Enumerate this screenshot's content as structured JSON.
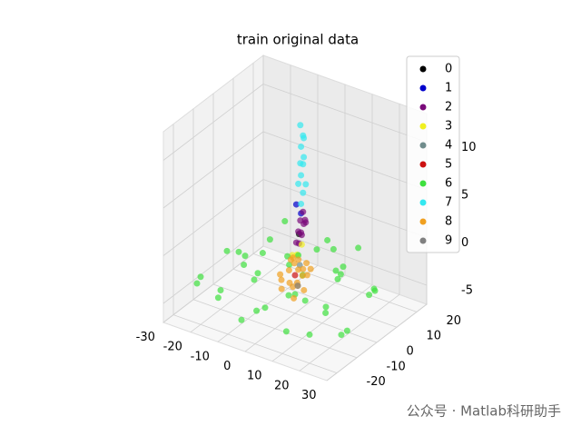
{
  "chart_data": {
    "type": "scatter3d",
    "title": "train original data",
    "xlim": [
      -30,
      30
    ],
    "ylim": [
      -25,
      25
    ],
    "zlim": [
      -7,
      13
    ],
    "xticks": [
      -30,
      -20,
      -10,
      0,
      10,
      20,
      30
    ],
    "yticks": [
      -20,
      -10,
      0,
      10,
      20
    ],
    "zticks": [
      -5,
      0,
      5,
      10
    ],
    "grid": true,
    "legend": "upper right",
    "series": [
      {
        "name": "0",
        "color": "#000000",
        "x": [
          0
        ],
        "y": [
          2
        ],
        "z": [
          1
        ]
      },
      {
        "name": "1",
        "color": "#0000cc",
        "x": [
          -1,
          0
        ],
        "y": [
          2,
          3
        ],
        "z": [
          4,
          3
        ]
      },
      {
        "name": "2",
        "color": "#7a0a7a",
        "x": [
          -1,
          0,
          1,
          0,
          -1,
          1,
          0,
          1,
          -1,
          0
        ],
        "y": [
          2,
          3,
          3,
          4,
          4,
          2,
          2,
          4,
          3,
          5
        ],
        "z": [
          0,
          1,
          2,
          3,
          2,
          1,
          0,
          2,
          1,
          2
        ]
      },
      {
        "name": "3",
        "color": "#f0f020",
        "x": [
          0,
          1,
          -1
        ],
        "y": [
          1,
          2,
          0
        ],
        "z": [
          -1,
          0,
          -1
        ]
      },
      {
        "name": "4",
        "color": "#708c8c",
        "x": [
          1
        ],
        "y": [
          1
        ],
        "z": [
          -2
        ]
      },
      {
        "name": "5",
        "color": "#cc1010",
        "x": [
          0
        ],
        "y": [
          0
        ],
        "z": [
          -3
        ]
      },
      {
        "name": "6",
        "color": "#3ee03e",
        "x": [
          -25,
          -20,
          -15,
          -10,
          -5,
          0,
          5,
          10,
          15,
          20,
          25,
          -22,
          -18,
          -12,
          -8,
          -3,
          3,
          8,
          12,
          18,
          22,
          -25,
          -15,
          -5,
          5,
          15,
          25,
          -20,
          0,
          10,
          -10,
          20,
          -28,
          28,
          6,
          -6,
          14,
          -14,
          2,
          -2
        ],
        "y": [
          -15,
          -10,
          -18,
          -5,
          -20,
          -15,
          -10,
          -18,
          -5,
          -12,
          -8,
          5,
          12,
          18,
          8,
          15,
          20,
          12,
          5,
          15,
          10,
          0,
          0,
          3,
          -3,
          0,
          3,
          -20,
          0,
          18,
          -12,
          -20,
          10,
          -15,
          8,
          -8,
          -14,
          14,
          -22,
          22
        ],
        "z": [
          -4,
          -5,
          -4,
          -3,
          -5,
          -4,
          -3,
          -5,
          -4,
          -3,
          -5,
          -4,
          -3,
          -5,
          -4,
          -3,
          -5,
          -4,
          -3,
          -5,
          -4,
          -3,
          -5,
          -2,
          -2,
          -1,
          -3,
          -2,
          -5,
          -2,
          -1,
          -4,
          -5,
          -4,
          0,
          0,
          -2,
          -1,
          -3,
          -4
        ]
      },
      {
        "name": "7",
        "color": "#33e8f0",
        "x": [
          0,
          0,
          -1,
          1,
          0,
          0,
          -1,
          1,
          0,
          0,
          1,
          -1
        ],
        "y": [
          3,
          4,
          3,
          4,
          3,
          4,
          4,
          3,
          3,
          4,
          3,
          4
        ],
        "z": [
          4,
          5,
          6,
          6,
          7,
          8,
          8,
          9,
          10,
          11,
          11,
          12
        ]
      },
      {
        "name": "8",
        "color": "#f0a020",
        "x": [
          -4,
          -2,
          0,
          2,
          4,
          -3,
          -1,
          1,
          3,
          -5,
          5,
          0,
          -2,
          2,
          -1,
          1,
          3,
          -3,
          0,
          2
        ],
        "y": [
          -2,
          0,
          -3,
          1,
          -1,
          2,
          3,
          -2,
          2,
          0,
          1,
          4,
          -4,
          -1,
          1,
          0,
          -3,
          3,
          -1,
          3
        ],
        "z": [
          -3,
          -4,
          -2,
          -3,
          -4,
          -2,
          -3,
          -5,
          -3,
          -4,
          -2,
          -3,
          -4,
          -1,
          -2,
          -4,
          -3,
          -5,
          -1,
          -2
        ]
      },
      {
        "name": "9",
        "color": "#808080",
        "x": [
          1
        ],
        "y": [
          0
        ],
        "z": [
          -4
        ]
      }
    ],
    "watermark": "公众号 · Matlab科研助手"
  }
}
